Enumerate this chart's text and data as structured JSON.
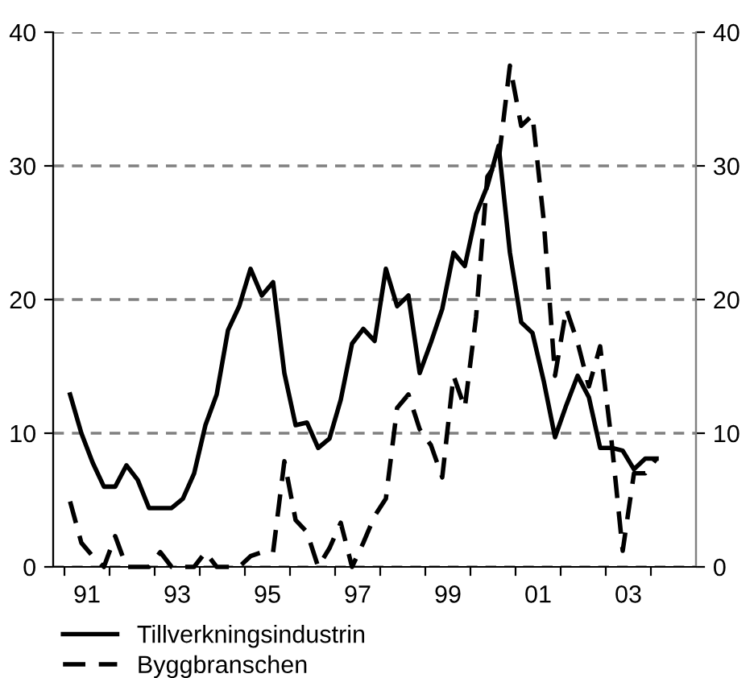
{
  "chart_data": {
    "type": "line",
    "x": [
      1990.625,
      1990.875,
      1991.125,
      1991.375,
      1991.625,
      1991.875,
      1992.125,
      1992.375,
      1992.625,
      1992.875,
      1993.125,
      1993.375,
      1993.625,
      1993.875,
      1994.125,
      1994.375,
      1994.625,
      1994.875,
      1995.125,
      1995.375,
      1995.625,
      1995.875,
      1996.125,
      1996.375,
      1996.625,
      1996.875,
      1997.125,
      1997.375,
      1997.625,
      1997.875,
      1998.125,
      1998.375,
      1998.625,
      1998.875,
      1999.125,
      1999.375,
      1999.625,
      1999.875,
      2000.125,
      2000.375,
      2000.625,
      2000.875,
      2001.125,
      2001.375,
      2001.625,
      2001.875,
      2002.125,
      2002.375,
      2002.625,
      2002.875,
      2003.125,
      2003.375,
      2003.625
    ],
    "series": [
      {
        "name": "Tillverkningsindustrin",
        "color": "#000000",
        "line_style": "solid",
        "values": [
          12.9,
          10.0,
          7.8,
          6.0,
          6.0,
          7.6,
          6.5,
          4.4,
          4.4,
          4.4,
          5.1,
          7.0,
          10.6,
          12.9,
          17.7,
          19.5,
          22.3,
          20.3,
          21.3,
          14.5,
          10.6,
          10.8,
          8.9,
          9.6,
          12.5,
          16.7,
          17.8,
          16.9,
          22.3,
          19.5,
          20.3,
          14.5,
          16.8,
          19.3,
          23.5,
          22.5,
          26.4,
          28.5,
          31.5,
          23.5,
          18.3,
          17.5,
          13.9,
          9.7,
          12.1,
          14.3,
          12.7,
          8.9,
          8.9,
          8.7,
          7.3,
          8.1,
          8.1
        ]
      },
      {
        "name": "Byggbranschen",
        "color": "#000000",
        "line_style": "dashed",
        "values": [
          4.9,
          1.8,
          0.8,
          0.0,
          2.3,
          0.0,
          0.0,
          0.0,
          1.1,
          0.0,
          0.0,
          0.0,
          1.1,
          0.0,
          0.0,
          0.0,
          0.8,
          1.1,
          1.1,
          7.9,
          3.5,
          2.6,
          0.0,
          1.4,
          3.3,
          0.0,
          1.8,
          3.8,
          5.1,
          11.9,
          12.9,
          10.3,
          9.1,
          6.7,
          14.3,
          11.9,
          18.7,
          29.2,
          30.4,
          37.5,
          33.0,
          33.8,
          25.9,
          14.3,
          19.3,
          16.8,
          13.5,
          16.5,
          9.5,
          1.2,
          7.0,
          7.0,
          8.1
        ]
      }
    ],
    "xlim": [
      1990.25,
      2004.5
    ],
    "xticks": [
      {
        "value": 1990.5,
        "label": null
      },
      {
        "value": 1991,
        "label": "91"
      },
      {
        "value": 1991.5,
        "label": null
      },
      {
        "value": 1992.5,
        "label": null
      },
      {
        "value": 1993,
        "label": "93"
      },
      {
        "value": 1993.5,
        "label": null
      },
      {
        "value": 1994.5,
        "label": null
      },
      {
        "value": 1995,
        "label": "95"
      },
      {
        "value": 1995.5,
        "label": null
      },
      {
        "value": 1996.5,
        "label": null
      },
      {
        "value": 1997,
        "label": "97"
      },
      {
        "value": 1997.5,
        "label": null
      },
      {
        "value": 1998.5,
        "label": null
      },
      {
        "value": 1999,
        "label": "99"
      },
      {
        "value": 1999.5,
        "label": null
      },
      {
        "value": 2000.5,
        "label": null
      },
      {
        "value": 2001,
        "label": "01"
      },
      {
        "value": 2001.5,
        "label": null
      },
      {
        "value": 2002.5,
        "label": null
      },
      {
        "value": 2003,
        "label": "03"
      },
      {
        "value": 2003.5,
        "label": null
      }
    ],
    "ylim": [
      0,
      40
    ],
    "yticks": [
      0,
      10,
      20,
      30,
      40
    ],
    "y2lim": [
      0,
      40
    ],
    "y2ticks": [
      0,
      10,
      20,
      30,
      40
    ],
    "grid": "y",
    "legend": "bottom left"
  }
}
